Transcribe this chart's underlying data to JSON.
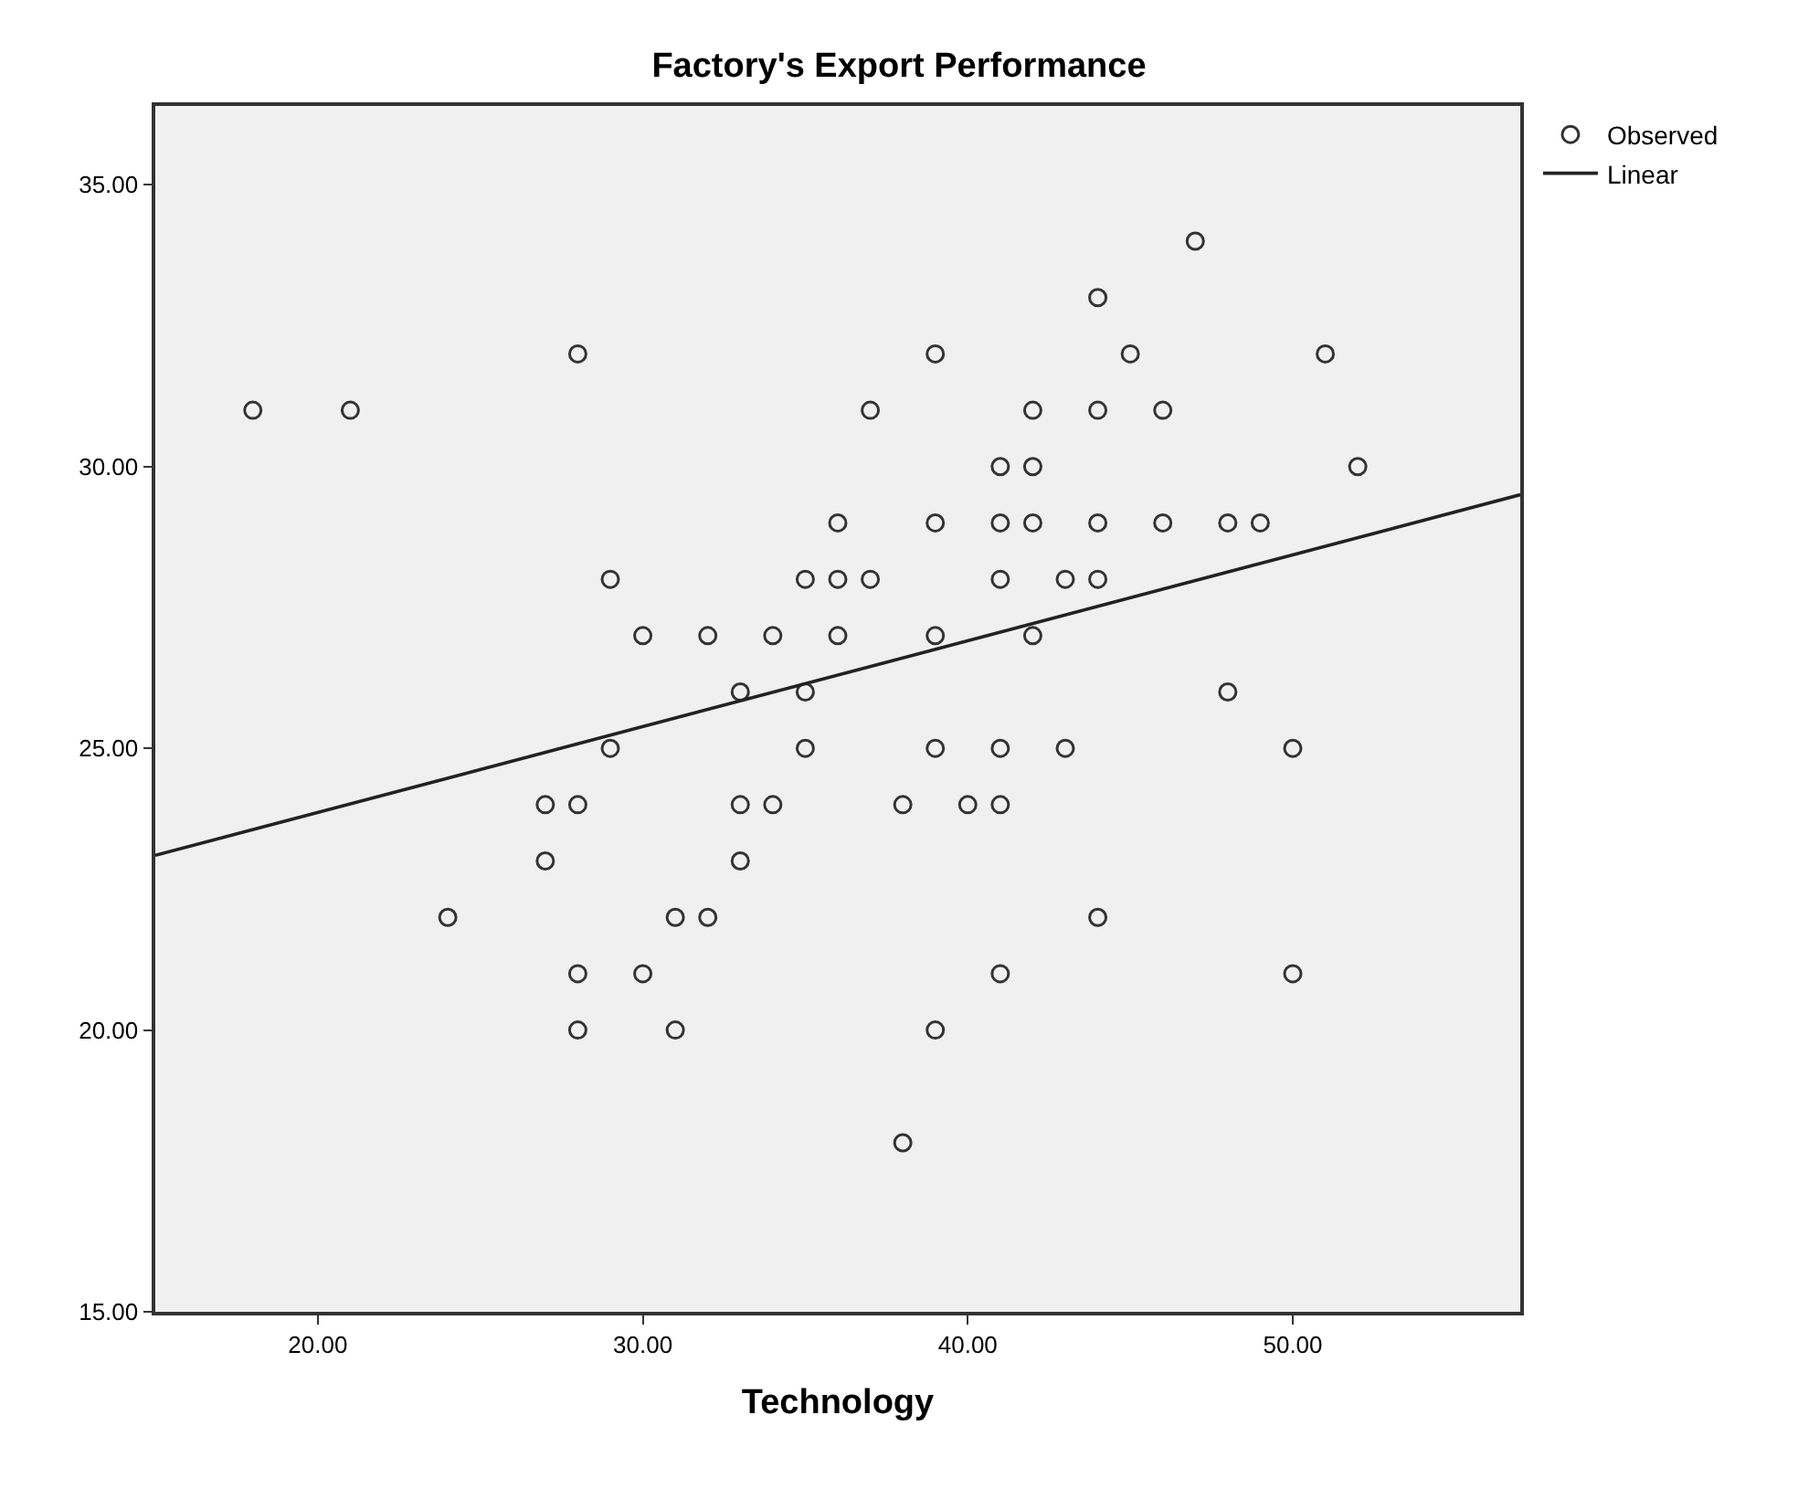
{
  "chart_data": {
    "type": "scatter",
    "title": "Factory's Export Performance",
    "xlabel": "Technology",
    "xlim": [
      15,
      57
    ],
    "ylim": [
      15,
      36.4
    ],
    "xticks": [
      {
        "value": 20,
        "label": "20.00"
      },
      {
        "value": 30,
        "label": "30.00"
      },
      {
        "value": 40,
        "label": "40.00"
      },
      {
        "value": 50,
        "label": "50.00"
      }
    ],
    "yticks": [
      {
        "value": 15,
        "label": "15.00"
      },
      {
        "value": 20,
        "label": "20.00"
      },
      {
        "value": 25,
        "label": "25.00"
      },
      {
        "value": 30,
        "label": "30.00"
      },
      {
        "value": 35,
        "label": "35.00"
      }
    ],
    "grid": false,
    "legend": "top right",
    "series": [
      {
        "name": "Observed",
        "type": "scatter",
        "marker": "circle",
        "color": "#333333",
        "x": [
          18,
          21,
          28,
          24,
          27,
          27,
          28,
          28,
          28,
          29,
          29,
          30,
          30,
          31,
          31,
          32,
          32,
          33,
          33,
          33,
          34,
          34,
          35,
          35,
          35,
          36,
          36,
          36,
          37,
          37,
          38,
          38,
          39,
          39,
          39,
          39,
          39,
          40,
          41,
          41,
          41,
          41,
          41,
          41,
          42,
          42,
          42,
          42,
          43,
          43,
          44,
          44,
          44,
          44,
          44,
          45,
          46,
          46,
          47,
          48,
          48,
          49,
          50,
          50,
          51,
          52
        ],
        "values": [
          31,
          31,
          32,
          22,
          24,
          23,
          24,
          21,
          20,
          28,
          25,
          27,
          21,
          22,
          20,
          27,
          22,
          26,
          24,
          23,
          27,
          24,
          28,
          26,
          25,
          29,
          28,
          27,
          31,
          28,
          24,
          18,
          32,
          29,
          27,
          25,
          20,
          24,
          30,
          29,
          28,
          25,
          24,
          21,
          31,
          30,
          29,
          27,
          28,
          25,
          33,
          31,
          29,
          28,
          22,
          32,
          31,
          29,
          34,
          29,
          26,
          29,
          25,
          21,
          32,
          30
        ]
      },
      {
        "name": "Linear",
        "type": "line",
        "marker": "none",
        "color": "#222222",
        "line_style": "solid",
        "x": [
          15,
          57
        ],
        "values": [
          23.1,
          29.5
        ]
      }
    ]
  }
}
